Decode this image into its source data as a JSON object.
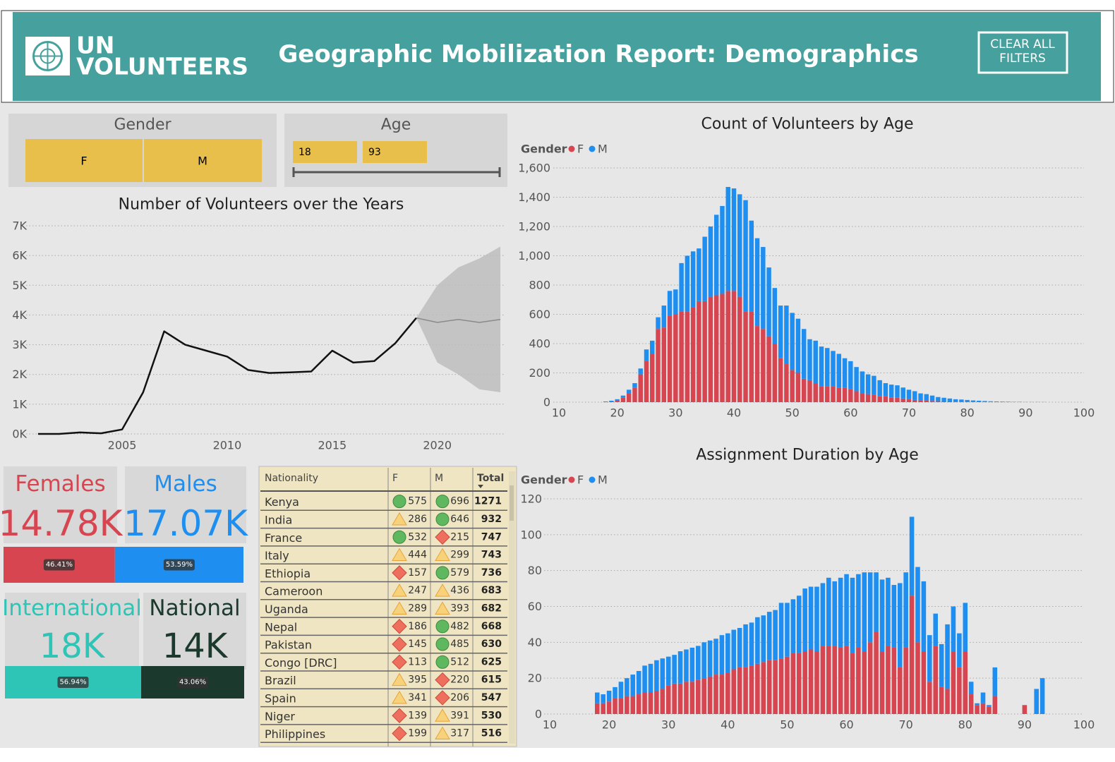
{
  "header": {
    "logo_lines": [
      "UN",
      "VOLUNTEERS"
    ],
    "title": "Geographic Mobilization Report: Demographics",
    "button_lines": [
      "CLEAR ALL",
      "FILTERS"
    ]
  },
  "slicers": {
    "gender": {
      "title": "Gender",
      "options": [
        "F",
        "M"
      ]
    },
    "age": {
      "title": "Age",
      "range": [
        18,
        93
      ]
    }
  },
  "kpis": {
    "gender": {
      "items": [
        {
          "label": "Females",
          "value": "14.78K",
          "color": "#d64550"
        },
        {
          "label": "Males",
          "value": "17.07K",
          "color": "#1e8ff0"
        }
      ],
      "shares": [
        {
          "value": 46.41,
          "label": "46.41%"
        },
        {
          "value": 53.59,
          "label": "53.59%"
        }
      ]
    },
    "type": {
      "items": [
        {
          "label": "International",
          "value": "18K",
          "color": "#2ec4b6"
        },
        {
          "label": "National",
          "value": "14K",
          "color": "#1b3a2d"
        }
      ],
      "shares": [
        {
          "value": 56.94,
          "label": "56.94%"
        },
        {
          "value": 43.06,
          "label": "43.06%"
        }
      ]
    }
  },
  "table": {
    "columns": [
      "Nationality",
      "F",
      "M",
      "Total"
    ],
    "rows": [
      [
        "Kenya",
        575,
        696,
        1271
      ],
      [
        "India",
        286,
        646,
        932
      ],
      [
        "France",
        532,
        215,
        747
      ],
      [
        "Italy",
        444,
        299,
        743
      ],
      [
        "Ethiopia",
        157,
        579,
        736
      ],
      [
        "Cameroon",
        247,
        436,
        683
      ],
      [
        "Uganda",
        289,
        393,
        682
      ],
      [
        "Nepal",
        186,
        482,
        668
      ],
      [
        "Pakistan",
        145,
        485,
        630
      ],
      [
        "Congo [DRC]",
        113,
        512,
        625
      ],
      [
        "Brazil",
        395,
        220,
        615
      ],
      [
        "Spain",
        341,
        206,
        547
      ],
      [
        "Niger",
        139,
        391,
        530
      ],
      [
        "Philippines",
        199,
        317,
        516
      ]
    ],
    "icons": [
      [
        "circle",
        "circle"
      ],
      [
        "triangle",
        "circle"
      ],
      [
        "circle",
        "diamond"
      ],
      [
        "triangle",
        "triangle"
      ],
      [
        "diamond",
        "circle"
      ],
      [
        "triangle",
        "triangle"
      ],
      [
        "triangle",
        "triangle"
      ],
      [
        "diamond",
        "circle"
      ],
      [
        "diamond",
        "circle"
      ],
      [
        "diamond",
        "circle"
      ],
      [
        "triangle",
        "diamond"
      ],
      [
        "triangle",
        "diamond"
      ],
      [
        "diamond",
        "triangle"
      ],
      [
        "diamond",
        "triangle"
      ]
    ]
  },
  "chart_data": [
    {
      "type": "line",
      "title": "Number of Volunteers over the Years",
      "color": "#111111",
      "x": [
        2001,
        2002,
        2003,
        2004,
        2005,
        2006,
        2007,
        2008,
        2009,
        2010,
        2011,
        2012,
        2013,
        2014,
        2015,
        2016,
        2017,
        2018,
        2019
      ],
      "values": [
        0,
        0,
        50,
        20,
        150,
        1400,
        3450,
        3000,
        2800,
        2600,
        2150,
        2050,
        2070,
        2100,
        2800,
        2400,
        2450,
        3050,
        3900
      ],
      "forecast": {
        "x": [
          2019,
          2020,
          2021,
          2022,
          2023
        ],
        "values": [
          3900,
          3750,
          3850,
          3750,
          3850
        ],
        "upper": [
          3900,
          5000,
          5600,
          5900,
          6300
        ],
        "lower": [
          3900,
          2400,
          2000,
          1500,
          1400
        ],
        "color": "#8a8a8a",
        "band_color": "#bdbdbd"
      },
      "xlim": [
        2000.7,
        2023.2
      ],
      "xticks": [
        2005,
        2010,
        2015,
        2020
      ],
      "ylim": [
        0,
        7000
      ],
      "yticks": [
        {
          "value": 0,
          "label": "0K"
        },
        {
          "value": 1000,
          "label": "1K"
        },
        {
          "value": 2000,
          "label": "2K"
        },
        {
          "value": 3000,
          "label": "3K"
        },
        {
          "value": 4000,
          "label": "4K"
        },
        {
          "value": 5000,
          "label": "5K"
        },
        {
          "value": 6000,
          "label": "6K"
        },
        {
          "value": 7000,
          "label": "7K"
        }
      ],
      "grid": true
    },
    {
      "type": "bar",
      "stacked": true,
      "title": "Count of Volunteers by Age",
      "legend_title": "Gender",
      "x": [
        18,
        19,
        20,
        21,
        22,
        23,
        24,
        25,
        26,
        27,
        28,
        29,
        30,
        31,
        32,
        33,
        34,
        35,
        36,
        37,
        38,
        39,
        40,
        41,
        42,
        43,
        44,
        45,
        46,
        47,
        48,
        49,
        50,
        51,
        52,
        53,
        54,
        55,
        56,
        57,
        58,
        59,
        60,
        61,
        62,
        63,
        64,
        65,
        66,
        67,
        68,
        69,
        70,
        71,
        72,
        73,
        74,
        75,
        76,
        77,
        78,
        79,
        80,
        81,
        82,
        83,
        84,
        85,
        86,
        87,
        88,
        89,
        90,
        91,
        92,
        93
      ],
      "series": [
        {
          "name": "F",
          "color": "#d64550",
          "values": [
            3,
            5,
            12,
            30,
            60,
            100,
            190,
            280,
            330,
            500,
            510,
            590,
            600,
            620,
            620,
            650,
            690,
            690,
            720,
            730,
            740,
            760,
            760,
            720,
            620,
            620,
            520,
            500,
            450,
            400,
            300,
            260,
            220,
            200,
            160,
            150,
            130,
            110,
            110,
            110,
            100,
            100,
            90,
            75,
            60,
            55,
            50,
            40,
            40,
            30,
            30,
            25,
            20,
            15,
            10,
            10,
            8,
            7,
            5,
            5,
            3,
            3,
            2,
            2,
            2,
            1,
            1,
            1,
            1,
            0,
            0,
            0,
            0,
            0,
            0,
            0
          ]
        },
        {
          "name": "M",
          "color": "#1e8ff0",
          "values": [
            2,
            5,
            8,
            15,
            25,
            30,
            40,
            80,
            90,
            80,
            150,
            170,
            170,
            330,
            380,
            380,
            360,
            440,
            480,
            550,
            600,
            710,
            700,
            700,
            760,
            620,
            600,
            560,
            470,
            380,
            360,
            400,
            390,
            370,
            340,
            280,
            290,
            270,
            260,
            240,
            230,
            200,
            190,
            165,
            150,
            135,
            130,
            110,
            90,
            90,
            85,
            75,
            65,
            60,
            50,
            45,
            37,
            28,
            25,
            20,
            17,
            15,
            13,
            10,
            8,
            7,
            5,
            4,
            3,
            3,
            2,
            2,
            1,
            1,
            1,
            1
          ]
        }
      ],
      "xlim": [
        10,
        100
      ],
      "xticks": [
        10,
        20,
        30,
        40,
        50,
        60,
        70,
        80,
        90,
        100
      ],
      "ylim": [
        0,
        1600
      ],
      "yticks": [
        0,
        200,
        400,
        600,
        800,
        {
          "value": 1000,
          "label": "1,000"
        },
        {
          "value": 1200,
          "label": "1,200"
        },
        {
          "value": 1400,
          "label": "1,400"
        },
        {
          "value": 1600,
          "label": "1,600"
        }
      ],
      "grid": true
    },
    {
      "type": "bar",
      "stacked": true,
      "title": "Assignment Duration by Age",
      "legend_title": "Gender",
      "x": [
        18,
        19,
        20,
        21,
        22,
        23,
        24,
        25,
        26,
        27,
        28,
        29,
        30,
        31,
        32,
        33,
        34,
        35,
        36,
        37,
        38,
        39,
        40,
        41,
        42,
        43,
        44,
        45,
        46,
        47,
        48,
        49,
        50,
        51,
        52,
        53,
        54,
        55,
        56,
        57,
        58,
        59,
        60,
        61,
        62,
        63,
        64,
        65,
        66,
        67,
        68,
        69,
        70,
        71,
        72,
        73,
        74,
        75,
        76,
        77,
        78,
        79,
        80,
        81,
        82,
        83,
        84,
        85,
        86,
        87,
        88,
        89,
        90,
        91,
        92,
        93
      ],
      "series": [
        {
          "name": "F",
          "color": "#d64550",
          "values": [
            6,
            6,
            7,
            9,
            9,
            10,
            10,
            11,
            12,
            12,
            13,
            14,
            16,
            17,
            17,
            18,
            18,
            19,
            20,
            21,
            22,
            22,
            23,
            25,
            26,
            26,
            27,
            28,
            29,
            30,
            30,
            31,
            32,
            34,
            34,
            35,
            36,
            35,
            38,
            38,
            38,
            37,
            38,
            34,
            37,
            35,
            40,
            46,
            35,
            38,
            37,
            26,
            37,
            66,
            40,
            35,
            18,
            38,
            15,
            14,
            35,
            26,
            35,
            11,
            5,
            6,
            4,
            10,
            0,
            0,
            0,
            0,
            5,
            0,
            0,
            0
          ]
        },
        {
          "name": "M",
          "color": "#1e8ff0",
          "values": [
            6,
            5,
            6,
            6,
            9,
            10,
            12,
            13,
            15,
            16,
            17,
            17,
            16,
            16,
            18,
            18,
            19,
            19,
            20,
            20,
            20,
            22,
            22,
            22,
            22,
            24,
            24,
            26,
            26,
            27,
            28,
            31,
            30,
            30,
            32,
            35,
            35,
            36,
            35,
            38,
            36,
            39,
            40,
            42,
            41,
            44,
            39,
            33,
            40,
            38,
            35,
            47,
            42,
            44,
            42,
            39,
            26,
            18,
            24,
            36,
            25,
            19,
            27,
            7,
            1,
            6,
            1,
            16,
            0,
            0,
            0,
            0,
            0,
            0,
            14,
            20
          ]
        }
      ],
      "xlim": [
        10,
        100
      ],
      "xticks": [
        10,
        20,
        30,
        40,
        50,
        60,
        70,
        80,
        90,
        100
      ],
      "ylim": [
        0,
        120
      ],
      "yticks": [
        0,
        20,
        40,
        60,
        80,
        100,
        120
      ],
      "grid": true
    }
  ]
}
